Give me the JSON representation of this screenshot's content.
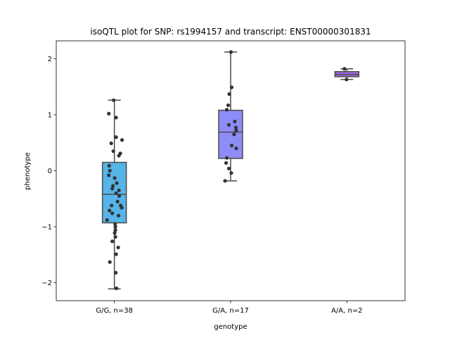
{
  "chart_data": {
    "type": "box",
    "title": "isoQTL plot for SNP: rs1994157 and transcript: ENST00000301831",
    "xlabel": "genotype",
    "ylabel": "phenotype",
    "categories": [
      "G/G, n=38",
      "G/A, n=17",
      "A/A, n=2"
    ],
    "ylim": [
      -2.32,
      2.32
    ],
    "yticks": [
      -2,
      -1,
      0,
      1,
      2
    ],
    "grid": false,
    "box_colors": [
      "#56b4e9",
      "#8e8cf7",
      "#a06ae4"
    ],
    "point_color": "#333333",
    "boxes": [
      {
        "category": "G/G, n=38",
        "whisker_low": -2.11,
        "q1": -0.93,
        "median": -0.42,
        "q3": 0.15,
        "whisker_high": 1.26
      },
      {
        "category": "G/A, n=17",
        "whisker_low": -0.18,
        "q1": 0.22,
        "median": 0.69,
        "q3": 1.08,
        "whisker_high": 2.12
      },
      {
        "category": "A/A, n=2",
        "whisker_low": 1.63,
        "q1": 1.68,
        "median": 1.72,
        "q3": 1.77,
        "whisker_high": 1.82
      }
    ],
    "points": [
      [
        {
          "jitter": -0.02,
          "y": 1.26
        },
        {
          "jitter": -0.16,
          "y": 1.02
        },
        {
          "jitter": 0.05,
          "y": 0.95
        },
        {
          "jitter": 0.05,
          "y": 0.6
        },
        {
          "jitter": 0.22,
          "y": 0.55
        },
        {
          "jitter": -0.09,
          "y": 0.49
        },
        {
          "jitter": -0.03,
          "y": 0.35
        },
        {
          "jitter": 0.17,
          "y": 0.31
        },
        {
          "jitter": 0.13,
          "y": 0.27
        },
        {
          "jitter": -0.15,
          "y": 0.09
        },
        {
          "jitter": -0.13,
          "y": 0.0
        },
        {
          "jitter": -0.16,
          "y": -0.08
        },
        {
          "jitter": 0.01,
          "y": -0.13
        },
        {
          "jitter": 0.07,
          "y": -0.22
        },
        {
          "jitter": -0.04,
          "y": -0.27
        },
        {
          "jitter": -0.06,
          "y": -0.32
        },
        {
          "jitter": 0.13,
          "y": -0.35
        },
        {
          "jitter": 0.05,
          "y": -0.4
        },
        {
          "jitter": 0.14,
          "y": -0.45
        },
        {
          "jitter": 0.09,
          "y": -0.55
        },
        {
          "jitter": 0.18,
          "y": -0.62
        },
        {
          "jitter": 0.21,
          "y": -0.66
        },
        {
          "jitter": -0.14,
          "y": -0.71
        },
        {
          "jitter": -0.06,
          "y": -0.76
        },
        {
          "jitter": 0.12,
          "y": -0.8
        },
        {
          "jitter": -0.21,
          "y": -0.88
        },
        {
          "jitter": 0.02,
          "y": -0.95
        },
        {
          "jitter": 0.03,
          "y": -1.0
        },
        {
          "jitter": 0.03,
          "y": -1.06
        },
        {
          "jitter": 0.01,
          "y": -1.11
        },
        {
          "jitter": 0.03,
          "y": -1.18
        },
        {
          "jitter": -0.06,
          "y": -1.26
        },
        {
          "jitter": 0.11,
          "y": -1.37
        },
        {
          "jitter": 0.05,
          "y": -1.49
        },
        {
          "jitter": -0.13,
          "y": -1.63
        },
        {
          "jitter": 0.04,
          "y": -1.82
        },
        {
          "jitter": 0.06,
          "y": -2.1
        },
        {
          "jitter": -0.08,
          "y": -0.62
        }
      ],
      [
        {
          "jitter": 0.01,
          "y": 2.12
        },
        {
          "jitter": 0.03,
          "y": 1.49
        },
        {
          "jitter": -0.04,
          "y": 1.37
        },
        {
          "jitter": -0.07,
          "y": 1.17
        },
        {
          "jitter": -0.11,
          "y": 1.09
        },
        {
          "jitter": 0.12,
          "y": 0.88
        },
        {
          "jitter": -0.05,
          "y": 0.82
        },
        {
          "jitter": 0.15,
          "y": 0.77
        },
        {
          "jitter": 0.16,
          "y": 0.72
        },
        {
          "jitter": 0.1,
          "y": 0.65
        },
        {
          "jitter": 0.03,
          "y": 0.45
        },
        {
          "jitter": 0.16,
          "y": 0.4
        },
        {
          "jitter": -0.11,
          "y": 0.23
        },
        {
          "jitter": -0.13,
          "y": 0.14
        },
        {
          "jitter": -0.05,
          "y": 0.04
        },
        {
          "jitter": 0.02,
          "y": -0.04
        },
        {
          "jitter": -0.16,
          "y": -0.18
        }
      ],
      [
        {
          "jitter": -0.07,
          "y": 1.82
        },
        {
          "jitter": -0.01,
          "y": 1.63
        }
      ]
    ]
  }
}
